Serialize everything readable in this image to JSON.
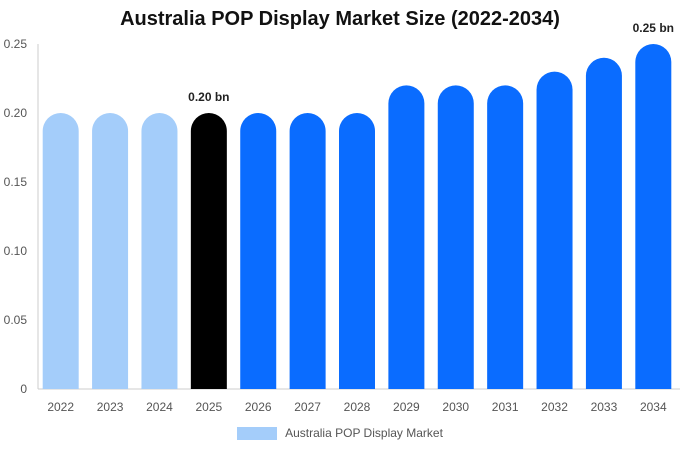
{
  "chart_data": {
    "type": "bar",
    "title": "Australia POP Display Market Size (2022-2034)",
    "categories": [
      "2022",
      "2023",
      "2024",
      "2025",
      "2026",
      "2027",
      "2028",
      "2029",
      "2030",
      "2031",
      "2032",
      "2033",
      "2034"
    ],
    "series": [
      {
        "name": "Australia POP Display Market",
        "values": [
          0.2,
          0.2,
          0.2,
          0.2,
          0.2,
          0.2,
          0.2,
          0.22,
          0.22,
          0.22,
          0.23,
          0.24,
          0.25
        ]
      }
    ],
    "ylim": [
      0,
      0.25
    ],
    "yticks": [
      "0",
      "0.05",
      "0.10",
      "0.15",
      "0.20",
      "0.25"
    ],
    "ytick_values": [
      0,
      0.05,
      0.1,
      0.15,
      0.2,
      0.25
    ],
    "annotations": [
      {
        "category": "2025",
        "text": "0.20 bn"
      },
      {
        "category": "2034",
        "text": "0.25 bn"
      }
    ],
    "bar_colors": [
      "#a4cdfa",
      "#a4cdfa",
      "#a4cdfa",
      "#000000",
      "#0a6cff",
      "#0a6cff",
      "#0a6cff",
      "#0a6cff",
      "#0a6cff",
      "#0a6cff",
      "#0a6cff",
      "#0a6cff",
      "#0a6cff"
    ],
    "legend": {
      "label": "Australia POP Display Market",
      "color": "#a4cdfa",
      "position": "bottom"
    },
    "grid": false
  }
}
